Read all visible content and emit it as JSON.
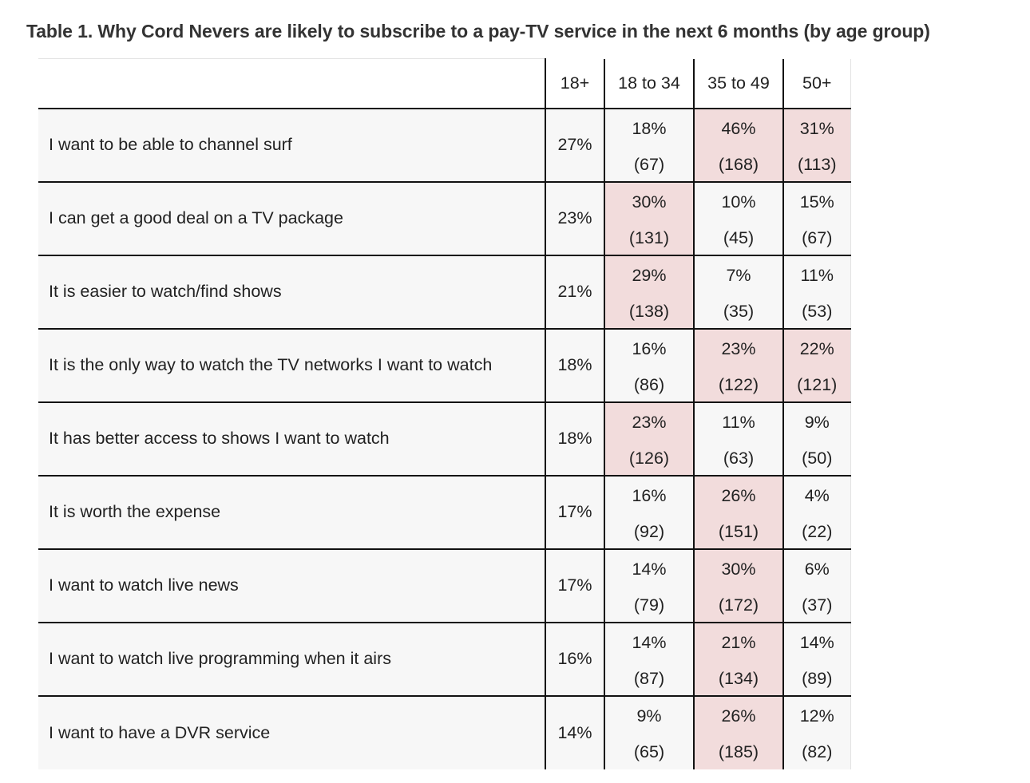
{
  "title": "Table 1. Why Cord Nevers are likely to subscribe to a pay-TV service in the next 6 months (by age group)",
  "columns": [
    "",
    "18+",
    "18 to 34",
    "35 to 49",
    "50+"
  ],
  "rows": [
    {
      "label": "I want to be able to channel surf",
      "overall": "27%",
      "cells": [
        {
          "pct": "18%",
          "n": "(67)",
          "hl": false
        },
        {
          "pct": "46%",
          "n": "(168)",
          "hl": true
        },
        {
          "pct": "31%",
          "n": "(113)",
          "hl": true
        }
      ]
    },
    {
      "label": "I can get a good deal on a TV package",
      "overall": "23%",
      "cells": [
        {
          "pct": "30%",
          "n": "(131)",
          "hl": true
        },
        {
          "pct": "10%",
          "n": "(45)",
          "hl": false
        },
        {
          "pct": "15%",
          "n": "(67)",
          "hl": false
        }
      ]
    },
    {
      "label": "It is easier to watch/find shows",
      "overall": "21%",
      "cells": [
        {
          "pct": "29%",
          "n": "(138)",
          "hl": true
        },
        {
          "pct": "7%",
          "n": "(35)",
          "hl": false
        },
        {
          "pct": "11%",
          "n": "(53)",
          "hl": false
        }
      ]
    },
    {
      "label": "It is the only way to watch the TV networks I want to watch",
      "overall": "18%",
      "cells": [
        {
          "pct": "16%",
          "n": "(86)",
          "hl": false
        },
        {
          "pct": "23%",
          "n": "(122)",
          "hl": true
        },
        {
          "pct": "22%",
          "n": "(121)",
          "hl": true
        }
      ]
    },
    {
      "label": "It has better access to shows I want to watch",
      "overall": "18%",
      "cells": [
        {
          "pct": "23%",
          "n": "(126)",
          "hl": true
        },
        {
          "pct": "11%",
          "n": "(63)",
          "hl": false
        },
        {
          "pct": "9%",
          "n": "(50)",
          "hl": false
        }
      ]
    },
    {
      "label": "It is worth the expense",
      "overall": "17%",
      "cells": [
        {
          "pct": "16%",
          "n": "(92)",
          "hl": false
        },
        {
          "pct": "26%",
          "n": "(151)",
          "hl": true
        },
        {
          "pct": "4%",
          "n": "(22)",
          "hl": false
        }
      ]
    },
    {
      "label": "I want to watch live news",
      "overall": "17%",
      "cells": [
        {
          "pct": "14%",
          "n": "(79)",
          "hl": false
        },
        {
          "pct": "30%",
          "n": "(172)",
          "hl": true
        },
        {
          "pct": "6%",
          "n": "(37)",
          "hl": false
        }
      ]
    },
    {
      "label": "I want to watch live programming when it airs",
      "overall": "16%",
      "cells": [
        {
          "pct": "14%",
          "n": "(87)",
          "hl": false
        },
        {
          "pct": "21%",
          "n": "(134)",
          "hl": true
        },
        {
          "pct": "14%",
          "n": "(89)",
          "hl": false
        }
      ]
    },
    {
      "label": "I want to have a DVR service",
      "overall": "14%",
      "cells": [
        {
          "pct": "9%",
          "n": "(65)",
          "hl": false
        },
        {
          "pct": "26%",
          "n": "(185)",
          "hl": true
        },
        {
          "pct": "12%",
          "n": "(82)",
          "hl": false
        }
      ]
    }
  ],
  "colors": {
    "highlight": "#f2dcdc",
    "row_background": "#f7f7f7",
    "border": "#111111"
  }
}
